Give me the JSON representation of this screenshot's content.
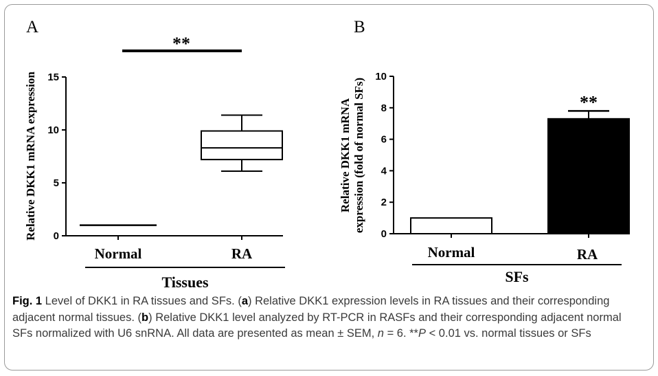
{
  "chart_data": [
    {
      "panel": "A",
      "type": "box",
      "categories": [
        "Normal",
        "RA"
      ],
      "boxes": [
        {
          "category": "Normal",
          "min": 1.0,
          "q1": 1.0,
          "median": 1.0,
          "q3": 1.0,
          "max": 1.0
        },
        {
          "category": "RA",
          "min": 6.1,
          "q1": 7.2,
          "median": 8.3,
          "q3": 9.9,
          "max": 11.4
        }
      ],
      "ylabel": "Relative DKK1 mRNA expression",
      "xlabel": "Tissues",
      "ylim": [
        0,
        15
      ],
      "yticks": [
        0,
        5,
        10,
        15
      ],
      "significance": "**"
    },
    {
      "panel": "B",
      "type": "bar",
      "categories": [
        "Normal",
        "RA"
      ],
      "values": [
        1.0,
        7.3
      ],
      "errors": [
        0.0,
        0.5
      ],
      "bar_colors": [
        "#ffffff",
        "#000000"
      ],
      "ylabel": "Relative DKK1 mRNA expression (fold of normal SFs)",
      "ylabel_lines": [
        "Relative DKK1 mRNA",
        "expression (fold of normal SFs)"
      ],
      "xlabel": "SFs",
      "ylim": [
        0,
        10
      ],
      "yticks": [
        0,
        2,
        4,
        6,
        8,
        10
      ],
      "significance": "**"
    }
  ],
  "caption": {
    "fig_label": "Fig. 1",
    "segments": [
      {
        "t": " Level of DKK1 in RA tissues and SFs. (",
        "b": false
      },
      {
        "t": "a",
        "b": true
      },
      {
        "t": ") Relative DKK1 expression levels in RA tissues and their corresponding adjacent normal tissues. (",
        "b": false
      },
      {
        "t": "b",
        "b": true
      },
      {
        "t": ") Relative DKK1 level analyzed by RT-PCR in RASFs and their corresponding adjacent normal SFs normalized with U6 snRNA. All data are presented as mean ± SEM, ",
        "b": false
      },
      {
        "t": "n",
        "i": true
      },
      {
        "t": " = 6. **",
        "b": false
      },
      {
        "t": "P",
        "i": true
      },
      {
        "t": " < 0.01 vs. normal tissues or SFs",
        "b": false
      }
    ]
  }
}
